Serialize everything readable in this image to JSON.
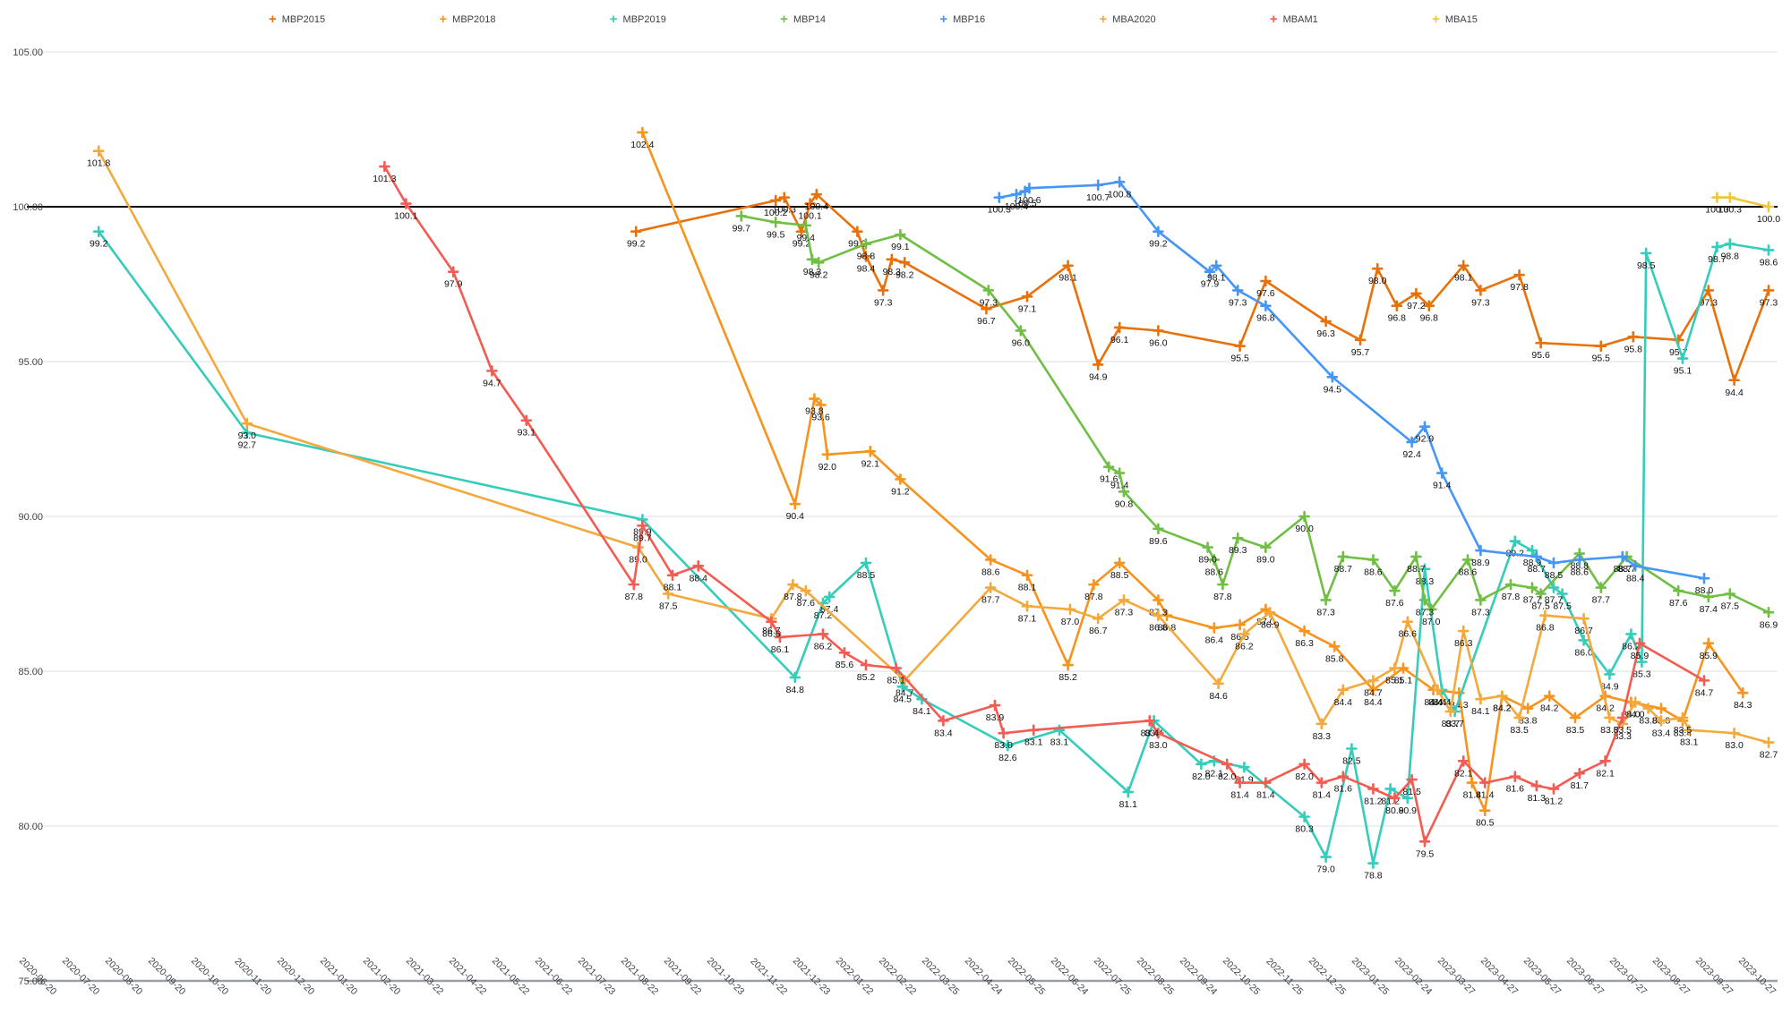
{
  "chart_data": {
    "type": "line",
    "title": "",
    "xlabel": "",
    "ylabel": "",
    "grid": true,
    "legend_position": "top",
    "baseline_value": 100,
    "y_axis": {
      "min": 75,
      "max": 105,
      "step": 5,
      "tick_labels": [
        "75.00",
        "80.00",
        "85.00",
        "90.00",
        "95.00",
        "100.00",
        "105.00"
      ]
    },
    "x_axis": {
      "tick_labels": [
        "2020-06-20",
        "2020-07-20",
        "2020-08-20",
        "2020-09-20",
        "2020-10-20",
        "2020-11-20",
        "2020-12-20",
        "2021-01-20",
        "2021-02-20",
        "2021-03-22",
        "2021-04-22",
        "2021-05-22",
        "2021-06-22",
        "2021-07-23",
        "2021-08-22",
        "2021-09-22",
        "2021-10-23",
        "2021-11-22",
        "2021-12-23",
        "2022-01-22",
        "2022-02-22",
        "2022-03-25",
        "2022-04-24",
        "2022-05-25",
        "2022-06-24",
        "2022-07-25",
        "2022-08-25",
        "2022-09-24",
        "2022-10-25",
        "2022-11-25",
        "2022-12-25",
        "2023-01-25",
        "2023-02-24",
        "2023-03-27",
        "2023-04-27",
        "2023-05-27",
        "2023-06-27",
        "2023-07-27",
        "2023-08-27",
        "2023-09-27",
        "2023-10-27"
      ]
    },
    "series": [
      {
        "name": "MBP2015",
        "color": "#e8710a",
        "points": [
          [
            13.65,
            99.2
          ],
          [
            16.9,
            100.2
          ],
          [
            17.1,
            100.3
          ],
          [
            17.5,
            99.2
          ],
          [
            17.7,
            100.1
          ],
          [
            17.85,
            100.4
          ],
          [
            18.8,
            99.2
          ],
          [
            19.0,
            98.4
          ],
          [
            19.4,
            97.3
          ],
          [
            19.6,
            98.3
          ],
          [
            19.9,
            98.2
          ],
          [
            21.8,
            96.7
          ],
          [
            22.75,
            97.1
          ],
          [
            23.7,
            98.1
          ],
          [
            24.4,
            94.9
          ],
          [
            24.9,
            96.1
          ],
          [
            25.8,
            96.0
          ],
          [
            27.7,
            95.5
          ],
          [
            28.3,
            97.6
          ],
          [
            29.7,
            96.3
          ],
          [
            30.5,
            95.7
          ],
          [
            30.9,
            98.0
          ],
          [
            31.35,
            96.8
          ],
          [
            31.8,
            97.2
          ],
          [
            32.1,
            96.8
          ],
          [
            32.9,
            98.1
          ],
          [
            33.3,
            97.3
          ],
          [
            34.2,
            97.8
          ],
          [
            34.7,
            95.6
          ],
          [
            36.1,
            95.5
          ],
          [
            36.85,
            95.8
          ],
          [
            37.9,
            95.7
          ],
          [
            38.6,
            97.3
          ],
          [
            39.2,
            94.4
          ],
          [
            40,
            97.3
          ]
        ]
      },
      {
        "name": "MBP2018",
        "color": "#f7941d",
        "points": [
          [
            13.8,
            102.4
          ],
          [
            17.35,
            90.4
          ],
          [
            17.8,
            93.8
          ],
          [
            17.95,
            93.6
          ],
          [
            18.1,
            92.0
          ],
          [
            19.1,
            92.1
          ],
          [
            19.8,
            91.2
          ],
          [
            21.9,
            88.6
          ],
          [
            22.75,
            88.1
          ],
          [
            23.7,
            85.2
          ],
          [
            24.3,
            87.8
          ],
          [
            24.9,
            88.5
          ],
          [
            25.8,
            87.3
          ],
          [
            26.0,
            86.8
          ],
          [
            27.1,
            86.4
          ],
          [
            27.7,
            86.5
          ],
          [
            28.3,
            87.0
          ],
          [
            29.2,
            86.3
          ],
          [
            29.9,
            85.8
          ],
          [
            30.8,
            84.4
          ],
          [
            31.5,
            85.1
          ],
          [
            32.2,
            84.4
          ],
          [
            32.8,
            84.3
          ],
          [
            33.1,
            81.4
          ],
          [
            33.4,
            80.5
          ],
          [
            33.8,
            84.2
          ],
          [
            34.4,
            83.8
          ],
          [
            34.9,
            84.2
          ],
          [
            35.5,
            83.5
          ],
          [
            36.2,
            84.2
          ],
          [
            36.8,
            84.0
          ],
          [
            37.5,
            83.8
          ],
          [
            38.0,
            83.4
          ],
          [
            38.6,
            85.9
          ],
          [
            39.4,
            84.3
          ]
        ]
      },
      {
        "name": "MBP2019",
        "color": "#35ccba",
        "points": [
          [
            1.15,
            99.2
          ],
          [
            4.6,
            92.7
          ],
          [
            13.8,
            89.9
          ],
          [
            17.35,
            84.8
          ],
          [
            18.0,
            87.2
          ],
          [
            18.15,
            87.4
          ],
          [
            19.0,
            88.5
          ],
          [
            19.85,
            84.5
          ],
          [
            20.3,
            84.1
          ],
          [
            22.3,
            82.6
          ],
          [
            23.5,
            83.1
          ],
          [
            25.1,
            81.1
          ],
          [
            25.7,
            83.4
          ],
          [
            26.8,
            82.0
          ],
          [
            27.1,
            82.1
          ],
          [
            27.8,
            81.9
          ],
          [
            29.2,
            80.3
          ],
          [
            29.7,
            79.0
          ],
          [
            30.3,
            82.5
          ],
          [
            30.8,
            78.8
          ],
          [
            31.2,
            81.2
          ],
          [
            31.6,
            80.9
          ],
          [
            32.0,
            88.3
          ],
          [
            32.4,
            84.4
          ],
          [
            32.7,
            83.7
          ],
          [
            34.1,
            89.2
          ],
          [
            34.5,
            88.9
          ],
          [
            35.0,
            87.7
          ],
          [
            35.2,
            87.5
          ],
          [
            35.7,
            86.0
          ],
          [
            36.3,
            84.9
          ],
          [
            36.8,
            86.2
          ],
          [
            37.05,
            85.3
          ],
          [
            37.15,
            98.5
          ],
          [
            38.0,
            95.1
          ],
          [
            38.8,
            98.7
          ],
          [
            39.1,
            98.8
          ],
          [
            40,
            98.6
          ]
        ]
      },
      {
        "name": "MBP14",
        "color": "#6fbf44",
        "points": [
          [
            16.1,
            99.7
          ],
          [
            16.9,
            99.5
          ],
          [
            17.6,
            99.4
          ],
          [
            17.75,
            98.3
          ],
          [
            17.9,
            98.2
          ],
          [
            19.0,
            98.8
          ],
          [
            19.8,
            99.1
          ],
          [
            21.85,
            97.3
          ],
          [
            22.6,
            96.0
          ],
          [
            24.65,
            91.6
          ],
          [
            24.9,
            91.4
          ],
          [
            25.0,
            90.8
          ],
          [
            25.8,
            89.6
          ],
          [
            26.95,
            89.0
          ],
          [
            27.1,
            88.6
          ],
          [
            27.3,
            87.8
          ],
          [
            27.65,
            89.3
          ],
          [
            28.3,
            89.0
          ],
          [
            29.2,
            90.0
          ],
          [
            29.7,
            87.3
          ],
          [
            30.1,
            88.7
          ],
          [
            30.8,
            88.6
          ],
          [
            31.3,
            87.6
          ],
          [
            31.8,
            88.7
          ],
          [
            32.0,
            87.3
          ],
          [
            32.15,
            87.0
          ],
          [
            33.0,
            88.6
          ],
          [
            33.3,
            87.3
          ],
          [
            34.0,
            87.8
          ],
          [
            34.5,
            87.7
          ],
          [
            34.7,
            87.5
          ],
          [
            35.6,
            88.8
          ],
          [
            36.1,
            87.7
          ],
          [
            36.7,
            88.7
          ],
          [
            37.9,
            87.6
          ],
          [
            38.6,
            87.4
          ],
          [
            39.1,
            87.5
          ],
          [
            40,
            86.9
          ]
        ]
      },
      {
        "name": "MBP16",
        "color": "#4596f7",
        "points": [
          [
            22.1,
            100.3
          ],
          [
            22.5,
            100.4
          ],
          [
            22.7,
            100.5
          ],
          [
            22.8,
            100.6
          ],
          [
            24.4,
            100.7
          ],
          [
            24.9,
            100.8
          ],
          [
            25.8,
            99.2
          ],
          [
            27.0,
            97.9
          ],
          [
            27.15,
            98.1
          ],
          [
            27.65,
            97.3
          ],
          [
            28.3,
            96.8
          ],
          [
            29.85,
            94.5
          ],
          [
            31.7,
            92.4
          ],
          [
            32.0,
            92.9
          ],
          [
            32.4,
            91.4
          ],
          [
            33.3,
            88.9
          ],
          [
            34.6,
            88.7
          ],
          [
            35.0,
            88.5
          ],
          [
            35.6,
            88.6
          ],
          [
            36.6,
            88.7
          ],
          [
            36.9,
            88.4
          ],
          [
            38.5,
            88.0
          ]
        ]
      },
      {
        "name": "MBA2020",
        "color": "#f3a93c",
        "points": [
          [
            1.15,
            101.8
          ],
          [
            4.6,
            93.0
          ],
          [
            13.7,
            89.0
          ],
          [
            14.4,
            87.5
          ],
          [
            16.8,
            86.7
          ],
          [
            17.3,
            87.8
          ],
          [
            17.6,
            87.6
          ],
          [
            19.9,
            84.7
          ],
          [
            21.9,
            87.7
          ],
          [
            22.75,
            87.1
          ],
          [
            23.75,
            87.0
          ],
          [
            24.4,
            86.7
          ],
          [
            25.0,
            87.3
          ],
          [
            25.8,
            86.8
          ],
          [
            27.2,
            84.6
          ],
          [
            27.8,
            86.2
          ],
          [
            28.4,
            86.9
          ],
          [
            29.6,
            83.3
          ],
          [
            30.1,
            84.4
          ],
          [
            30.8,
            84.7
          ],
          [
            31.3,
            85.1
          ],
          [
            31.6,
            86.6
          ],
          [
            32.3,
            84.4
          ],
          [
            32.6,
            83.7
          ],
          [
            32.9,
            86.3
          ],
          [
            33.3,
            84.1
          ],
          [
            33.8,
            84.2
          ],
          [
            34.2,
            83.5
          ],
          [
            34.8,
            86.8
          ],
          [
            35.7,
            86.7
          ],
          [
            36.3,
            83.5
          ],
          [
            36.6,
            83.3
          ],
          [
            36.9,
            84.0
          ],
          [
            37.2,
            83.8
          ],
          [
            37.5,
            83.4
          ],
          [
            38.0,
            83.5
          ],
          [
            38.15,
            83.1
          ],
          [
            39.2,
            83.0
          ],
          [
            40,
            82.7
          ]
        ]
      },
      {
        "name": "MBAM1",
        "color": "#f25c52",
        "points": [
          [
            7.8,
            101.3
          ],
          [
            8.3,
            100.1
          ],
          [
            9.4,
            97.9
          ],
          [
            10.3,
            94.7
          ],
          [
            11.1,
            93.1
          ],
          [
            13.6,
            87.8
          ],
          [
            13.8,
            89.7
          ],
          [
            14.5,
            88.1
          ],
          [
            15.1,
            88.4
          ],
          [
            16.8,
            86.6
          ],
          [
            17.0,
            86.1
          ],
          [
            18.0,
            86.2
          ],
          [
            18.5,
            85.6
          ],
          [
            19.0,
            85.2
          ],
          [
            19.7,
            85.1
          ],
          [
            20.8,
            83.4
          ],
          [
            22.0,
            83.9
          ],
          [
            22.2,
            83.0
          ],
          [
            22.9,
            83.1
          ],
          [
            25.6,
            83.4
          ],
          [
            25.8,
            83.0
          ],
          [
            27.4,
            82.0
          ],
          [
            27.7,
            81.4
          ],
          [
            28.3,
            81.4
          ],
          [
            29.2,
            82.0
          ],
          [
            29.6,
            81.4
          ],
          [
            30.1,
            81.6
          ],
          [
            30.8,
            81.2
          ],
          [
            31.3,
            80.9
          ],
          [
            31.7,
            81.5
          ],
          [
            32.0,
            79.5
          ],
          [
            32.9,
            82.1
          ],
          [
            33.4,
            81.4
          ],
          [
            34.1,
            81.6
          ],
          [
            34.6,
            81.3
          ],
          [
            35.0,
            81.2
          ],
          [
            35.6,
            81.7
          ],
          [
            36.2,
            82.1
          ],
          [
            36.6,
            83.5
          ],
          [
            37.0,
            85.9
          ],
          [
            38.5,
            84.7
          ]
        ]
      },
      {
        "name": "MBA15",
        "color": "#f0c53d",
        "points": [
          [
            38.8,
            100.3
          ],
          [
            39.1,
            100.3
          ],
          [
            40,
            100.0
          ]
        ]
      }
    ]
  }
}
